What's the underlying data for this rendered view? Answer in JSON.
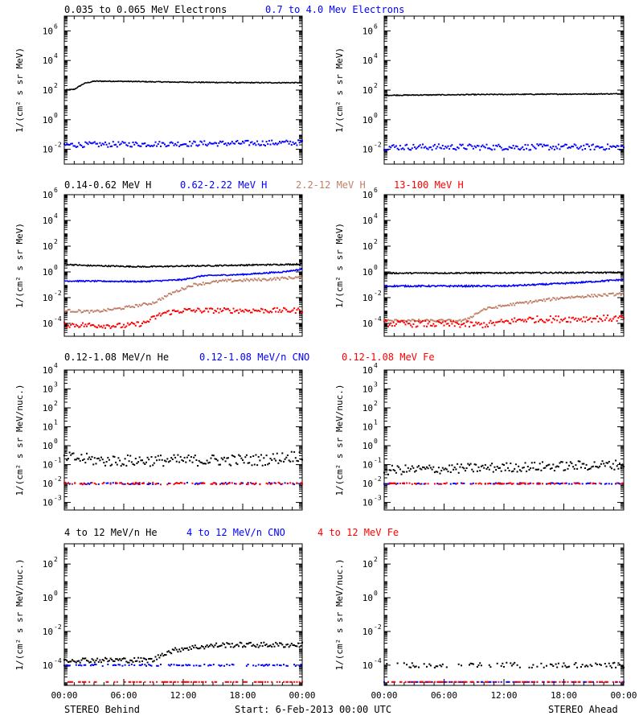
{
  "footer": {
    "left": "STEREO Behind",
    "center": "Start:  6-Feb-2013 00:00 UTC",
    "right": "STEREO Ahead"
  },
  "chart_data": [
    {
      "type": "scatter",
      "title_parts": [
        {
          "text": "0.035 to 0.065 MeV Electrons",
          "color": "#000000"
        },
        {
          "text": "0.7 to 4.0 Mev Electrons",
          "color": "#0000ff"
        }
      ],
      "ylabel": "1/(cm² s sr MeV)",
      "y_scale": "log",
      "ylim_exp": [
        -3,
        7
      ],
      "ytick_exps": [
        -2,
        0,
        2,
        4,
        6
      ],
      "x_ticks": [
        "00:00",
        "06:00",
        "12:00",
        "18:00",
        "00:00"
      ],
      "xlim_hours": [
        0,
        24
      ],
      "grid": false,
      "panels": [
        {
          "spacecraft": "STEREO Behind",
          "series": [
            {
              "name": "0.035 to 0.065 MeV Electrons",
              "color": "#000000",
              "mode": "line",
              "knots": [
                [
                  0,
                  2.0
                ],
                [
                  1.0,
                  2.05
                ],
                [
                  2.0,
                  2.45
                ],
                [
                  3.0,
                  2.6
                ],
                [
                  5.0,
                  2.6
                ],
                [
                  10.0,
                  2.55
                ],
                [
                  18.0,
                  2.5
                ],
                [
                  24.0,
                  2.5
                ]
              ],
              "noise": 0.03,
              "sparse": false
            },
            {
              "name": "0.7 to 4.0 Mev Electrons",
              "color": "#0000ff",
              "mode": "points",
              "knots": [
                [
                  0,
                  -1.7
                ],
                [
                  24,
                  -1.55
                ]
              ],
              "noise": 0.18,
              "sparse": false
            }
          ]
        },
        {
          "spacecraft": "STEREO Ahead",
          "series": [
            {
              "name": "0.035 to 0.065 MeV Electrons",
              "color": "#000000",
              "mode": "line",
              "knots": [
                [
                  0,
                  1.65
                ],
                [
                  10.0,
                  1.7
                ],
                [
                  24.0,
                  1.75
                ]
              ],
              "noise": 0.03,
              "sparse": false
            },
            {
              "name": "0.7 to 4.0 Mev Electrons",
              "color": "#0000ff",
              "mode": "points",
              "knots": [
                [
                  0,
                  -1.85
                ],
                [
                  24,
                  -1.85
                ]
              ],
              "noise": 0.2,
              "sparse": false
            }
          ]
        }
      ]
    },
    {
      "type": "scatter",
      "title_parts": [
        {
          "text": "0.14-0.62 MeV H",
          "color": "#000000"
        },
        {
          "text": "0.62-2.22 MeV H",
          "color": "#0000ff"
        },
        {
          "text": "2.2-12 MeV H",
          "color": "#c08068"
        },
        {
          "text": "13-100 MeV H",
          "color": "#ff0000"
        }
      ],
      "ylabel": "1/(cm² s sr MeV)",
      "y_scale": "log",
      "ylim_exp": [
        -5,
        6
      ],
      "ytick_exps": [
        -4,
        -2,
        0,
        2,
        4,
        6
      ],
      "x_ticks": [
        "00:00",
        "06:00",
        "12:00",
        "18:00",
        "00:00"
      ],
      "xlim_hours": [
        0,
        24
      ],
      "grid": false,
      "panels": [
        {
          "spacecraft": "STEREO Behind",
          "series": [
            {
              "name": "0.14-0.62 MeV H",
              "color": "#000000",
              "mode": "line",
              "knots": [
                [
                  0,
                  0.6
                ],
                [
                  2,
                  0.5
                ],
                [
                  8,
                  0.4
                ],
                [
                  16,
                  0.5
                ],
                [
                  24,
                  0.6
                ]
              ],
              "noise": 0.05,
              "sparse": false
            },
            {
              "name": "0.62-2.22 MeV H",
              "color": "#0000ff",
              "mode": "line",
              "knots": [
                [
                  0,
                  -0.7
                ],
                [
                  8,
                  -0.75
                ],
                [
                  12,
                  -0.6
                ],
                [
                  14,
                  -0.3
                ],
                [
                  18,
                  -0.2
                ],
                [
                  22,
                  0
                ],
                [
                  24,
                  0.2
                ]
              ],
              "noise": 0.05,
              "sparse": false
            },
            {
              "name": "2.2-12 MeV H",
              "color": "#c08068",
              "mode": "points",
              "knots": [
                [
                  0,
                  -3.0
                ],
                [
                  3,
                  -3.1
                ],
                [
                  6,
                  -2.8
                ],
                [
                  9,
                  -2.4
                ],
                [
                  11,
                  -1.6
                ],
                [
                  13,
                  -1.0
                ],
                [
                  16,
                  -0.7
                ],
                [
                  20,
                  -0.6
                ],
                [
                  24,
                  -0.4
                ]
              ],
              "noise": 0.1,
              "sparse": false
            },
            {
              "name": "13-100 MeV H",
              "color": "#ff0000",
              "mode": "points",
              "knots": [
                [
                  0,
                  -4.1
                ],
                [
                  6,
                  -4.2
                ],
                [
                  8,
                  -4.0
                ],
                [
                  10,
                  -3.2
                ],
                [
                  12,
                  -3.0
                ],
                [
                  24,
                  -3.0
                ]
              ],
              "noise": 0.2,
              "sparse": false
            }
          ]
        },
        {
          "spacecraft": "STEREO Ahead",
          "series": [
            {
              "name": "0.14-0.62 MeV H",
              "color": "#000000",
              "mode": "line",
              "knots": [
                [
                  0,
                  -0.1
                ],
                [
                  24,
                  -0.05
                ]
              ],
              "noise": 0.05,
              "sparse": false
            },
            {
              "name": "0.62-2.22 MeV H",
              "color": "#0000ff",
              "mode": "line",
              "knots": [
                [
                  0,
                  -1.1
                ],
                [
                  12,
                  -1.1
                ],
                [
                  18,
                  -0.9
                ],
                [
                  24,
                  -0.6
                ]
              ],
              "noise": 0.06,
              "sparse": false
            },
            {
              "name": "2.2-12 MeV H",
              "color": "#c08068",
              "mode": "points",
              "knots": [
                [
                  0,
                  -3.8
                ],
                [
                  8,
                  -3.8
                ],
                [
                  10,
                  -2.9
                ],
                [
                  13,
                  -2.5
                ],
                [
                  18,
                  -2.0
                ],
                [
                  24,
                  -1.7
                ]
              ],
              "noise": 0.1,
              "sparse": false
            },
            {
              "name": "13-100 MeV H",
              "color": "#ff0000",
              "mode": "points",
              "knots": [
                [
                  0,
                  -4.0
                ],
                [
                  10,
                  -4.1
                ],
                [
                  14,
                  -3.7
                ],
                [
                  24,
                  -3.6
                ]
              ],
              "noise": 0.25,
              "sparse": false
            }
          ]
        }
      ]
    },
    {
      "type": "scatter",
      "title_parts": [
        {
          "text": "0.12-1.08 MeV/n He",
          "color": "#000000"
        },
        {
          "text": "0.12-1.08 MeV/n CNO",
          "color": "#0000ff"
        },
        {
          "text": "0.12-1.08 MeV Fe",
          "color": "#ff0000"
        }
      ],
      "ylabel": "1/(cm² s sr MeV/nuc.)",
      "y_scale": "log",
      "ylim_exp": [
        -3.4,
        4
      ],
      "ytick_exps": [
        -3,
        -2,
        -1,
        0,
        1,
        2,
        3,
        4
      ],
      "x_ticks": [
        "00:00",
        "06:00",
        "12:00",
        "18:00",
        "00:00"
      ],
      "xlim_hours": [
        0,
        24
      ],
      "grid": false,
      "panels": [
        {
          "spacecraft": "STEREO Behind",
          "series": [
            {
              "name": "0.12-1.08 MeV/n He",
              "color": "#000000",
              "mode": "points",
              "knots": [
                [
                  0,
                  -0.6
                ],
                [
                  4,
                  -0.8
                ],
                [
                  20,
                  -0.75
                ],
                [
                  24,
                  -0.5
                ]
              ],
              "noise": 0.3,
              "sparse": false
            },
            {
              "name": "0.12-1.08 MeV/n CNO",
              "color": "#0000ff",
              "mode": "points",
              "knots": [
                [
                  0,
                  -2.0
                ],
                [
                  24,
                  -2.0
                ]
              ],
              "noise": 0.05,
              "sparse": true
            },
            {
              "name": "0.12-1.08 MeV Fe",
              "color": "#ff0000",
              "mode": "points",
              "knots": [
                [
                  0,
                  -2.0
                ],
                [
                  24,
                  -2.0
                ]
              ],
              "noise": 0.05,
              "sparse": true
            }
          ]
        },
        {
          "spacecraft": "STEREO Ahead",
          "series": [
            {
              "name": "0.12-1.08 MeV/n He",
              "color": "#000000",
              "mode": "points",
              "knots": [
                [
                  0,
                  -1.3
                ],
                [
                  24,
                  -1.0
                ]
              ],
              "noise": 0.25,
              "sparse": false
            },
            {
              "name": "0.12-1.08 MeV/n CNO",
              "color": "#0000ff",
              "mode": "points",
              "knots": [
                [
                  0,
                  -2.0
                ],
                [
                  24,
                  -2.0
                ]
              ],
              "noise": 0.03,
              "sparse": true
            },
            {
              "name": "0.12-1.08 MeV Fe",
              "color": "#ff0000",
              "mode": "points",
              "knots": [
                [
                  0,
                  -2.0
                ],
                [
                  24,
                  -2.0
                ]
              ],
              "noise": 0.03,
              "sparse": true
            }
          ]
        }
      ]
    },
    {
      "type": "scatter",
      "title_parts": [
        {
          "text": "4 to 12 MeV/n He",
          "color": "#000000"
        },
        {
          "text": "4 to 12 MeV/n CNO",
          "color": "#0000ff"
        },
        {
          "text": "4 to 12 MeV Fe",
          "color": "#ff0000"
        }
      ],
      "ylabel": "1/(cm² s sr MeV/nuc.)",
      "y_scale": "log",
      "ylim_exp": [
        -5.2,
        3.2
      ],
      "ytick_exps": [
        -4,
        -2,
        0,
        2
      ],
      "x_ticks": [
        "00:00",
        "06:00",
        "12:00",
        "18:00",
        "00:00"
      ],
      "xlim_hours": [
        0,
        24
      ],
      "grid": false,
      "panels": [
        {
          "spacecraft": "STEREO Behind",
          "series": [
            {
              "name": "4 to 12 MeV/n He",
              "color": "#000000",
              "mode": "points",
              "knots": [
                [
                  0,
                  -3.7
                ],
                [
                  9,
                  -3.7
                ],
                [
                  10,
                  -3.3
                ],
                [
                  12,
                  -3.0
                ],
                [
                  16,
                  -2.8
                ],
                [
                  24,
                  -2.8
                ]
              ],
              "noise": 0.15,
              "sparse": false
            },
            {
              "name": "4 to 12 MeV/n CNO",
              "color": "#0000ff",
              "mode": "points",
              "knots": [
                [
                  0,
                  -4.0
                ],
                [
                  24,
                  -4.0
                ]
              ],
              "noise": 0.05,
              "sparse": true
            },
            {
              "name": "4 to 12 MeV Fe",
              "color": "#ff0000",
              "mode": "points",
              "knots": [
                [
                  0,
                  -5.0
                ],
                [
                  24,
                  -5.0
                ]
              ],
              "noise": 0.0,
              "sparse": true
            }
          ]
        },
        {
          "spacecraft": "STEREO Ahead",
          "series": [
            {
              "name": "4 to 12 MeV/n He",
              "color": "#000000",
              "mode": "points",
              "knots": [
                [
                  0,
                  -4.0
                ],
                [
                  24,
                  -4.0
                ]
              ],
              "noise": 0.15,
              "sparse": true
            },
            {
              "name": "4 to 12 MeV/n CNO",
              "color": "#0000ff",
              "mode": "points",
              "knots": [
                [
                  0,
                  -5.0
                ],
                [
                  24,
                  -5.0
                ]
              ],
              "noise": 0.0,
              "sparse": true
            },
            {
              "name": "4 to 12 MeV Fe",
              "color": "#ff0000",
              "mode": "points",
              "knots": [
                [
                  0,
                  -5.0
                ],
                [
                  24,
                  -5.0
                ]
              ],
              "noise": 0.0,
              "sparse": true
            }
          ]
        }
      ]
    }
  ]
}
